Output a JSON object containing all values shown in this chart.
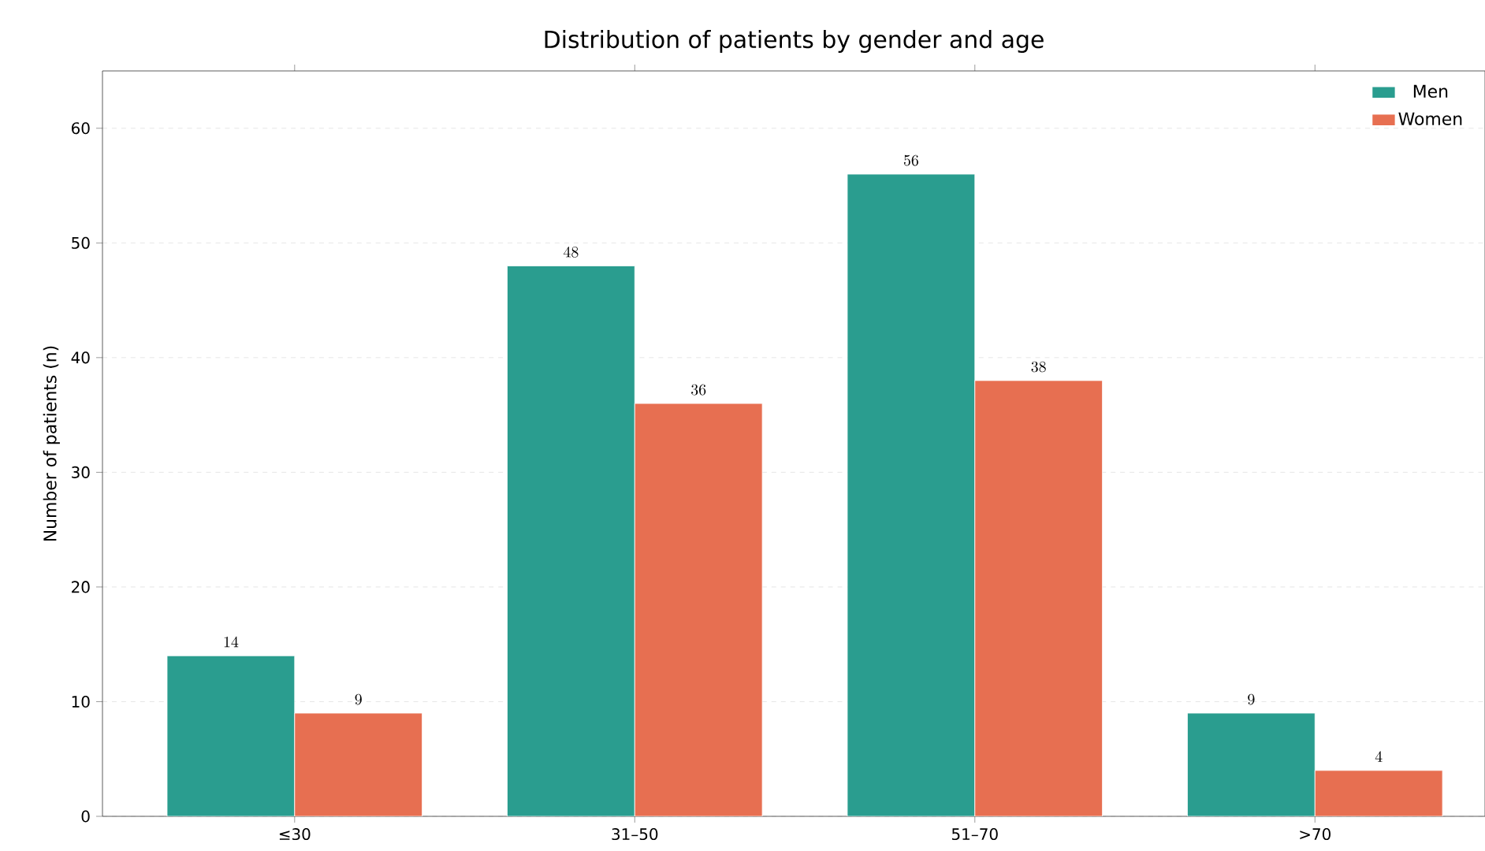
{
  "chart_data": {
    "type": "bar",
    "title": "Distribution of patients by gender and age",
    "ylabel": "Number of patients (n)",
    "categories": [
      "≤30",
      "31–50",
      "51–70",
      ">70"
    ],
    "series": [
      {
        "name": "Men",
        "color": "#2a9d8f",
        "values": [
          14,
          48,
          56,
          9
        ]
      },
      {
        "name": "Women",
        "color": "#e76f51",
        "values": [
          9,
          36,
          38,
          4
        ]
      }
    ],
    "ylim": [
      0,
      65
    ],
    "yticks": [
      0,
      10,
      20,
      30,
      40,
      50,
      60
    ],
    "grid": "y",
    "legend": "top right",
    "data_labels": true
  }
}
